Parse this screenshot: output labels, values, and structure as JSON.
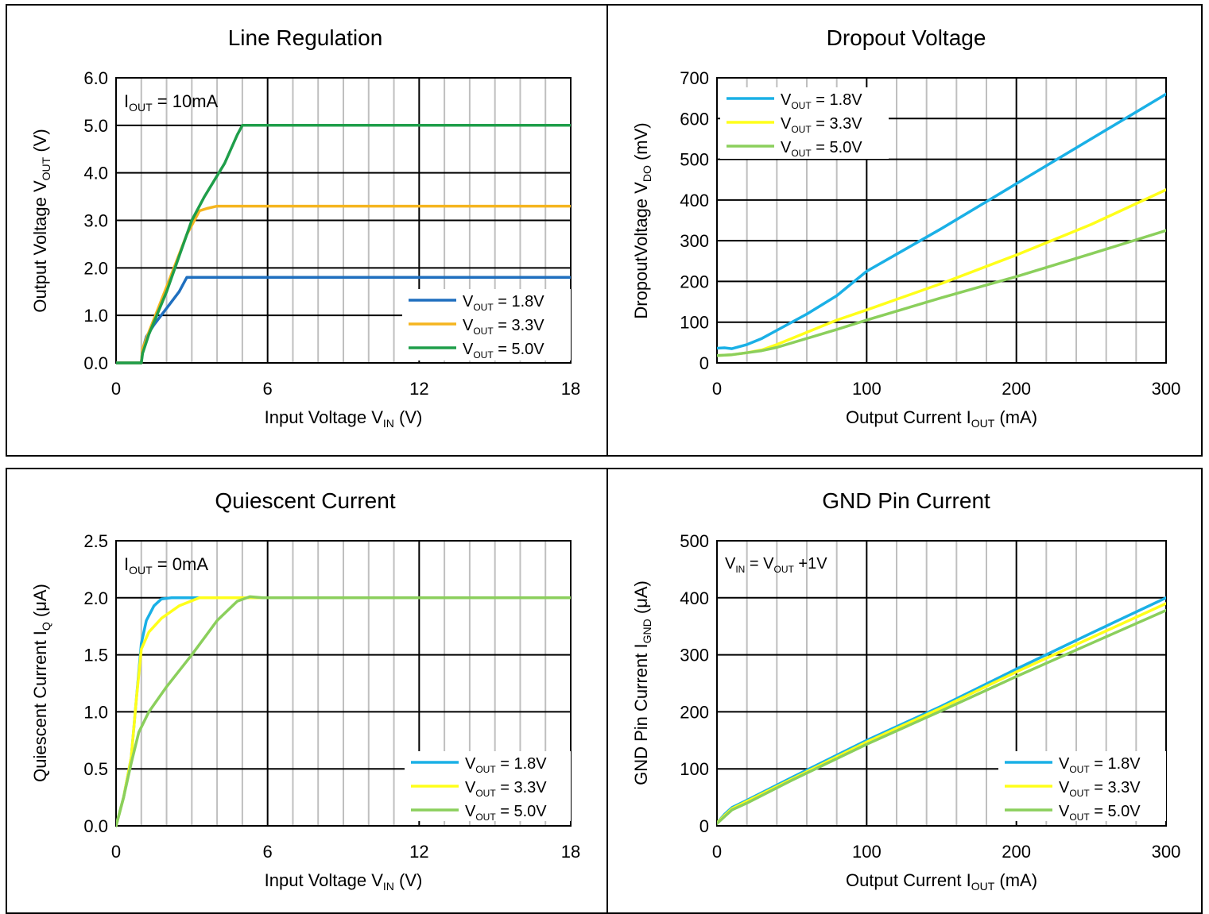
{
  "chart_data": [
    {
      "type": "line",
      "title": "Line Regulation",
      "xlabel": {
        "pre": "Input Voltage V",
        "sub": "IN",
        "post": " (V)"
      },
      "ylabel": {
        "pre": "Output Voltage V",
        "sub": "OUT",
        "post": " (V)"
      },
      "xlim": [
        0,
        18
      ],
      "ylim": [
        0,
        6
      ],
      "xticks": [
        0,
        6,
        12,
        18
      ],
      "xtick_labels": [
        "0",
        "6",
        "12",
        "18"
      ],
      "yticks": [
        0,
        1,
        2,
        3,
        4,
        5,
        6
      ],
      "ytick_labels": [
        "0.0",
        "1.0",
        "2.0",
        "3.0",
        "4.0",
        "5.0",
        "6.0"
      ],
      "x_minor_step": 1,
      "condition": {
        "pre": "I",
        "sub": "OUT",
        "post": " = 10mA"
      },
      "legend_position": "bottom-right",
      "series": [
        {
          "name": {
            "pre": "V",
            "sub": "OUT",
            "post": " = 1.8V"
          },
          "color": "#1f6fbf",
          "x": [
            0,
            1.0,
            1.05,
            1.2,
            1.5,
            2.0,
            2.5,
            2.8,
            3.0,
            18
          ],
          "y": [
            0,
            0,
            0.28,
            0.55,
            0.8,
            1.15,
            1.5,
            1.8,
            1.8,
            1.8
          ]
        },
        {
          "name": {
            "pre": "V",
            "sub": "OUT",
            "post": " = 3.3V"
          },
          "color": "#f5b51f",
          "x": [
            0,
            1.0,
            1.05,
            1.3,
            2.0,
            2.8,
            3.3,
            3.6,
            4.0,
            18
          ],
          "y": [
            0,
            0,
            0.3,
            0.65,
            1.6,
            2.7,
            3.2,
            3.25,
            3.3,
            3.3
          ]
        },
        {
          "name": {
            "pre": "V",
            "sub": "OUT",
            "post": " = 5.0V"
          },
          "color": "#1f9e4a",
          "x": [
            0,
            1.0,
            1.05,
            1.3,
            2.0,
            3.0,
            3.5,
            4.3,
            4.8,
            5.0,
            18
          ],
          "y": [
            0,
            0,
            0.2,
            0.6,
            1.5,
            3.0,
            3.5,
            4.2,
            4.8,
            5.0,
            5.0
          ]
        }
      ]
    },
    {
      "type": "line",
      "title": "Dropout Voltage",
      "xlabel": {
        "pre": "Output Current I",
        "sub": "OUT",
        "post": " (mA)"
      },
      "ylabel": {
        "pre": "DropoutVoltage V",
        "sub": "DO",
        "post": " (mV)"
      },
      "xlim": [
        0,
        300
      ],
      "ylim": [
        0,
        700
      ],
      "xticks": [
        0,
        100,
        200,
        300
      ],
      "xtick_labels": [
        "0",
        "100",
        "200",
        "300"
      ],
      "yticks": [
        0,
        100,
        200,
        300,
        400,
        500,
        600,
        700
      ],
      "ytick_labels": [
        "0",
        "100",
        "200",
        "300",
        "400",
        "500",
        "600",
        "700"
      ],
      "x_minor_step": 20,
      "legend_position": "top-left",
      "series": [
        {
          "name": {
            "pre": "V",
            "sub": "OUT",
            "post": " = 1.8V"
          },
          "color": "#1ab0e6",
          "x": [
            0,
            5,
            10,
            20,
            30,
            40,
            60,
            80,
            100,
            150,
            200,
            250,
            300
          ],
          "y": [
            36,
            37,
            35,
            45,
            60,
            80,
            120,
            165,
            225,
            330,
            440,
            550,
            660
          ]
        },
        {
          "name": {
            "pre": "V",
            "sub": "OUT",
            "post": " = 3.3V"
          },
          "color": "#ffff1a",
          "x": [
            0,
            10,
            20,
            30,
            40,
            60,
            80,
            100,
            150,
            200,
            250,
            300
          ],
          "y": [
            18,
            20,
            25,
            32,
            45,
            75,
            105,
            130,
            195,
            265,
            340,
            425
          ]
        },
        {
          "name": {
            "pre": "V",
            "sub": "OUT",
            "post": " = 5.0V"
          },
          "color": "#8bcf5c",
          "x": [
            0,
            10,
            20,
            30,
            40,
            60,
            80,
            100,
            150,
            200,
            250,
            300
          ],
          "y": [
            18,
            20,
            25,
            30,
            38,
            60,
            82,
            105,
            160,
            212,
            268,
            325
          ]
        }
      ]
    },
    {
      "type": "line",
      "title": "Quiescent Current",
      "xlabel": {
        "pre": "Input Voltage V",
        "sub": "IN",
        "post": " (V)"
      },
      "ylabel": {
        "pre": "Quiescent Current I",
        "sub": "Q",
        "post": " (μA)"
      },
      "xlim": [
        0,
        18
      ],
      "ylim": [
        0,
        2.5
      ],
      "xticks": [
        0,
        6,
        12,
        18
      ],
      "xtick_labels": [
        "0",
        "6",
        "12",
        "18"
      ],
      "yticks": [
        0,
        0.5,
        1.0,
        1.5,
        2.0,
        2.5
      ],
      "ytick_labels": [
        "0.0",
        "0.5",
        "1.0",
        "1.5",
        "2.0",
        "2.5"
      ],
      "x_minor_step": 1,
      "condition": {
        "pre": "I",
        "sub": "OUT",
        "post": " = 0mA"
      },
      "legend_position": "bottom-right",
      "series": [
        {
          "name": {
            "pre": "V",
            "sub": "OUT",
            "post": " = 1.8V"
          },
          "color": "#1ab0e6",
          "x": [
            0,
            0.3,
            0.6,
            0.8,
            1.0,
            1.2,
            1.5,
            1.8,
            2.2,
            18
          ],
          "y": [
            0,
            0.25,
            0.6,
            1.1,
            1.6,
            1.8,
            1.93,
            1.99,
            2.0,
            2.0
          ]
        },
        {
          "name": {
            "pre": "V",
            "sub": "OUT",
            "post": " = 3.3V"
          },
          "color": "#ffff1a",
          "x": [
            0,
            0.3,
            0.6,
            0.8,
            1.0,
            1.3,
            1.8,
            2.5,
            3.3,
            4.0,
            18
          ],
          "y": [
            0,
            0.25,
            0.6,
            1.1,
            1.55,
            1.7,
            1.82,
            1.93,
            2.0,
            2.0,
            2.0
          ]
        },
        {
          "name": {
            "pre": "V",
            "sub": "OUT",
            "post": " = 5.0V"
          },
          "color": "#8bcf5c",
          "x": [
            0,
            0.3,
            0.6,
            0.9,
            1.3,
            2.0,
            3.0,
            4.0,
            4.8,
            5.3,
            5.8,
            6.2,
            18
          ],
          "y": [
            0,
            0.25,
            0.55,
            0.82,
            1.0,
            1.22,
            1.5,
            1.8,
            1.97,
            2.01,
            2.0,
            2.0,
            2.0
          ]
        }
      ]
    },
    {
      "type": "line",
      "title": "GND Pin Current",
      "xlabel": {
        "pre": "Output Current I",
        "sub": "OUT",
        "post": " (mA)"
      },
      "ylabel": {
        "pre": "GND Pin Current I",
        "sub": "GND",
        "post": " (μA)"
      },
      "xlim": [
        0,
        300
      ],
      "ylim": [
        0,
        500
      ],
      "xticks": [
        0,
        100,
        200,
        300
      ],
      "xtick_labels": [
        "0",
        "100",
        "200",
        "300"
      ],
      "yticks": [
        0,
        100,
        200,
        300,
        400,
        500
      ],
      "ytick_labels": [
        "0",
        "100",
        "200",
        "300",
        "400",
        "500"
      ],
      "x_minor_step": 20,
      "condition": {
        "pre": "V",
        "sub": "IN",
        "post": " = V",
        "sub2": "OUT",
        "post2": " +1V"
      },
      "legend_position": "bottom-right",
      "series": [
        {
          "name": {
            "pre": "V",
            "sub": "OUT",
            "post": " = 1.8V"
          },
          "color": "#1ab0e6",
          "x": [
            0,
            5,
            10,
            20,
            50,
            100,
            150,
            200,
            250,
            300
          ],
          "y": [
            5,
            20,
            32,
            45,
            85,
            150,
            210,
            275,
            338,
            400
          ]
        },
        {
          "name": {
            "pre": "V",
            "sub": "OUT",
            "post": " = 3.3V"
          },
          "color": "#ffff1a",
          "x": [
            0,
            5,
            10,
            20,
            50,
            100,
            150,
            200,
            250,
            300
          ],
          "y": [
            5,
            18,
            30,
            43,
            82,
            147,
            207,
            270,
            330,
            390
          ]
        },
        {
          "name": {
            "pre": "V",
            "sub": "OUT",
            "post": " = 5.0V"
          },
          "color": "#8bcf5c",
          "x": [
            0,
            5,
            10,
            20,
            50,
            100,
            150,
            200,
            250,
            300
          ],
          "y": [
            4,
            16,
            28,
            40,
            80,
            143,
            202,
            262,
            320,
            378
          ]
        }
      ]
    }
  ]
}
